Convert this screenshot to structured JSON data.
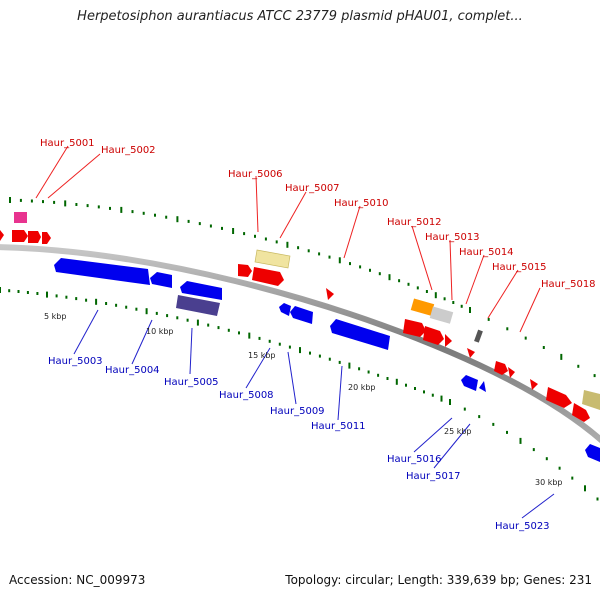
{
  "title": "Herpetosiphon aurantiacus ATCC 23779 plasmid pHAU01, complet...",
  "footer": {
    "accession": "Accession: NC_009973",
    "summary": "Topology: circular; Length: 339,639 bp; Genes: 231"
  },
  "colors": {
    "forward_label": "#cc0000",
    "reverse_label": "#0000bb",
    "forward_gene": "#ee0000",
    "reverse_gene": "#0000ee",
    "backbone": "#888888",
    "tick": "#006600"
  },
  "scale_ticks": [
    "5 kbp",
    "10 kbp",
    "15 kbp",
    "20 kbp",
    "25 kbp",
    "30 kbp"
  ],
  "forward_genes": [
    "Haur_5001",
    "Haur_5002",
    "Haur_5006",
    "Haur_5007",
    "Haur_5010",
    "Haur_5012",
    "Haur_5013",
    "Haur_5014",
    "Haur_5015",
    "Haur_5018"
  ],
  "reverse_genes": [
    "Haur_5003",
    "Haur_5004",
    "Haur_5005",
    "Haur_5008",
    "Haur_5009",
    "Haur_5011",
    "Haur_5016",
    "Haur_5017",
    "Haur_5023"
  ]
}
